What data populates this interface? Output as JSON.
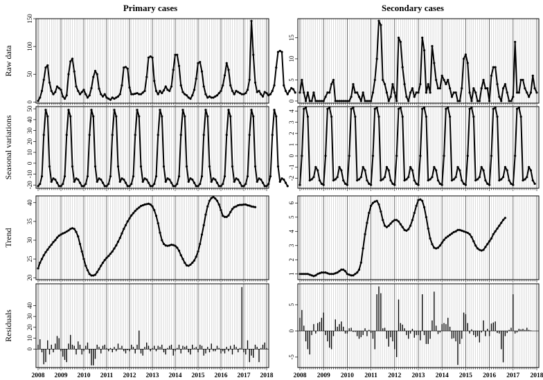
{
  "figure": {
    "columns": [
      "Primary cases",
      "Secondary cases"
    ],
    "rows": [
      "Raw data",
      "Seasonal variations",
      "Trend",
      "Residuals"
    ],
    "years": [
      "2008",
      "2009",
      "2010",
      "2011",
      "2012",
      "2013",
      "2014",
      "2015",
      "2016",
      "2017",
      "2018"
    ]
  },
  "chart_data": [
    {
      "name": "primary-raw",
      "type": "line",
      "column": "Primary cases",
      "ylabel": "Raw data",
      "x_start": 2008,
      "x_step_months": 1,
      "ylim": [
        -2,
        150
      ],
      "yticks": [
        0,
        50,
        100,
        150
      ],
      "values": [
        2,
        8,
        20,
        40,
        62,
        66,
        35,
        20,
        14,
        18,
        28,
        25,
        22,
        10,
        6,
        12,
        50,
        73,
        78,
        55,
        28,
        20,
        14,
        18,
        22,
        14,
        8,
        12,
        25,
        45,
        56,
        50,
        24,
        14,
        10,
        14,
        8,
        6,
        4,
        8,
        6,
        8,
        10,
        14,
        30,
        62,
        63,
        60,
        26,
        14,
        14,
        15,
        16,
        14,
        14,
        17,
        20,
        45,
        80,
        82,
        80,
        38,
        20,
        14,
        20,
        16,
        21,
        28,
        22,
        20,
        28,
        58,
        85,
        85,
        65,
        30,
        18,
        14,
        12,
        8,
        6,
        12,
        22,
        42,
        70,
        72,
        55,
        28,
        14,
        8,
        10,
        8,
        8,
        10,
        12,
        16,
        20,
        30,
        48,
        70,
        58,
        30,
        20,
        14,
        20,
        18,
        16,
        14,
        14,
        16,
        22,
        40,
        146,
        85,
        35,
        18,
        20,
        14,
        10,
        18,
        16,
        12,
        14,
        20,
        30,
        62,
        90,
        92,
        90,
        30,
        20,
        14,
        20,
        25,
        23,
        17
      ]
    },
    {
      "name": "primary-seasonal",
      "type": "line",
      "column": "Primary cases",
      "ylabel": "Seasonal variations",
      "x_start": 2008,
      "x_step_months": 1,
      "ylim": [
        -23,
        52
      ],
      "yticks": [
        -20,
        -10,
        0,
        10,
        20,
        30,
        40,
        50
      ],
      "values": [
        -21,
        -19,
        -12,
        26,
        49,
        43,
        -3,
        -17,
        -14,
        -15,
        -18,
        -21,
        -21,
        -19,
        -12,
        26,
        49,
        43,
        -3,
        -17,
        -14,
        -15,
        -18,
        -21,
        -21,
        -19,
        -12,
        26,
        49,
        43,
        -3,
        -17,
        -14,
        -15,
        -18,
        -21,
        -21,
        -19,
        -12,
        26,
        49,
        43,
        -3,
        -17,
        -14,
        -15,
        -18,
        -21,
        -21,
        -19,
        -12,
        26,
        49,
        43,
        -3,
        -17,
        -14,
        -15,
        -18,
        -21,
        -21,
        -19,
        -12,
        26,
        49,
        43,
        -3,
        -17,
        -14,
        -15,
        -18,
        -21,
        -21,
        -19,
        -12,
        26,
        49,
        43,
        -3,
        -17,
        -14,
        -15,
        -18,
        -21,
        -21,
        -19,
        -12,
        26,
        49,
        43,
        -3,
        -17,
        -14,
        -15,
        -18,
        -21,
        -21,
        -19,
        -12,
        26,
        49,
        43,
        -3,
        -17,
        -14,
        -15,
        -18,
        -21,
        -21,
        -19,
        -12,
        26,
        49,
        43,
        -3,
        -17,
        -14,
        -15,
        -18,
        -21,
        -21,
        -19,
        -12,
        26,
        49,
        43,
        -3,
        -17,
        -14,
        -15,
        -18,
        -21
      ]
    },
    {
      "name": "primary-trend",
      "type": "line",
      "column": "Primary cases",
      "ylabel": "Trend",
      "x_start": 2008,
      "x_step_months": 1,
      "ylim": [
        19.5,
        41.8
      ],
      "yticks": [
        20,
        25,
        30,
        35,
        40
      ],
      "values": [
        22.5,
        24,
        25,
        26,
        26.8,
        27.5,
        28.2,
        28.8,
        29.5,
        30,
        30.7,
        31.2,
        31.5,
        31.8,
        32,
        32.3,
        32.6,
        33,
        33.2,
        33,
        32.2,
        31,
        29,
        27,
        25,
        23.2,
        22,
        21,
        20.6,
        20.6,
        20.8,
        21.5,
        22.3,
        23.2,
        24,
        24.7,
        25.3,
        25.8,
        26.4,
        27,
        27.8,
        28.6,
        29.6,
        30.6,
        31.8,
        33,
        34,
        35,
        35.8,
        36.6,
        37.2,
        37.8,
        38.3,
        38.7,
        39.1,
        39.3,
        39.5,
        39.6,
        39.7,
        39.5,
        39,
        38,
        36.5,
        34.5,
        32,
        30,
        29,
        28.6,
        28.5,
        28.6,
        28.8,
        28.7,
        28.5,
        28,
        27.2,
        26,
        25,
        24,
        23.3,
        23.2,
        23.5,
        24,
        24.6,
        25.6,
        27,
        29,
        31.5,
        34,
        36.8,
        39,
        40.5,
        41.2,
        41.5,
        41.1,
        40.5,
        39.5,
        38,
        36.5,
        36.2,
        36.2,
        36.6,
        37.5,
        38.3,
        38.8,
        39,
        39.3,
        39.4,
        39.4,
        39.5,
        39.5,
        39.3,
        39.2,
        39,
        38.9,
        38.8
      ]
    },
    {
      "name": "primary-residuals",
      "type": "bar",
      "column": "Primary cases",
      "ylabel": "Residuals",
      "x_start": 2008,
      "x_step_months": 1,
      "ylim": [
        -17,
        60
      ],
      "yticks": [
        0,
        10,
        20,
        30,
        40
      ],
      "values": [
        4,
        9,
        -3,
        -14,
        -12,
        8,
        -5,
        4,
        -3,
        5,
        12,
        10,
        -2,
        -7,
        -10,
        -12,
        5,
        13,
        4,
        3,
        -5,
        7,
        4,
        -5,
        -2,
        3,
        6,
        -4,
        -15,
        -15,
        -9,
        4,
        2,
        -4,
        3,
        4,
        1,
        -2,
        1,
        -3,
        2,
        -2,
        5,
        1,
        3,
        -2,
        -4,
        -1,
        -2,
        4,
        2,
        -4,
        4,
        17,
        -4,
        -6,
        2,
        6,
        3,
        -2,
        1,
        3,
        -2,
        3,
        2,
        4,
        -3,
        -5,
        1,
        3,
        4,
        -6,
        -2,
        1,
        4,
        -4,
        3,
        2,
        3,
        -3,
        -5,
        4,
        1,
        2,
        -3,
        4,
        3,
        -6,
        -4,
        2,
        -3,
        5,
        -2,
        -2,
        3,
        1,
        -4,
        -2,
        -4,
        2,
        -2,
        3,
        -5,
        4,
        2,
        -3,
        1,
        57,
        -3,
        -5,
        8,
        -12,
        -6,
        -8,
        4,
        2,
        -12,
        1,
        4,
        6,
        1,
        23,
        18,
        -4,
        3,
        -2,
        5,
        -6,
        4,
        1
      ]
    },
    {
      "name": "secondary-raw",
      "type": "line",
      "column": "Secondary cases",
      "ylabel": "Raw data",
      "x_start": 2008,
      "x_step_months": 1,
      "ylim": [
        -0.5,
        19.5
      ],
      "yticks": [
        0,
        5,
        10,
        15
      ],
      "values": [
        2,
        5,
        2,
        0,
        2,
        0,
        0,
        2,
        0,
        0,
        0,
        0,
        0,
        1,
        2,
        2,
        4,
        5,
        0,
        0,
        0,
        0,
        0,
        0,
        0,
        0,
        1,
        4,
        2,
        2,
        1,
        0,
        2,
        0,
        0,
        0,
        0,
        2,
        5,
        10,
        19,
        18,
        5,
        4,
        2,
        0,
        1,
        4,
        2,
        0,
        15,
        14,
        8,
        4,
        1,
        0,
        2,
        3,
        1,
        2,
        2,
        4,
        15,
        12,
        2,
        4,
        2,
        13,
        9,
        5,
        3,
        3,
        6,
        5,
        4,
        5,
        3,
        1,
        2,
        2,
        0,
        0,
        3,
        10,
        11,
        9,
        2,
        0,
        3,
        2,
        0,
        0,
        3,
        5,
        3,
        3,
        0,
        6,
        8,
        8,
        4,
        1,
        0,
        3,
        4,
        2,
        0,
        0,
        1,
        14,
        2,
        2,
        5,
        5,
        3,
        2,
        1,
        2,
        6,
        3,
        2
      ]
    },
    {
      "name": "secondary-seasonal",
      "type": "line",
      "column": "Secondary cases",
      "ylabel": "Seasonal variations",
      "x_start": 2008,
      "x_step_months": 1,
      "ylim": [
        -2.9,
        4.4
      ],
      "yticks": [
        -2,
        -1,
        0,
        1,
        2,
        3,
        4
      ],
      "values": [
        -2.6,
        0,
        4.2,
        4.3,
        3.5,
        -2.2,
        -2.1,
        -1.9,
        -1,
        -1.3,
        -2.2,
        -2.5,
        -2.6,
        0,
        4.2,
        4.3,
        3.5,
        -2.2,
        -2.1,
        -1.9,
        -1,
        -1.3,
        -2.2,
        -2.5,
        -2.6,
        0,
        4.2,
        4.3,
        3.5,
        -2.2,
        -2.1,
        -1.9,
        -1,
        -1.3,
        -2.2,
        -2.5,
        -2.6,
        0,
        4.2,
        4.3,
        3.5,
        -2.2,
        -2.1,
        -1.9,
        -1,
        -1.3,
        -2.2,
        -2.5,
        -2.6,
        0,
        4.2,
        4.3,
        3.5,
        -2.2,
        -2.1,
        -1.9,
        -1,
        -1.3,
        -2.2,
        -2.5,
        -2.6,
        0,
        4.2,
        4.3,
        3.5,
        -2.2,
        -2.1,
        -1.9,
        -1,
        -1.3,
        -2.2,
        -2.5,
        -2.6,
        0,
        4.2,
        4.3,
        3.5,
        -2.2,
        -2.1,
        -1.9,
        -1,
        -1.3,
        -2.2,
        -2.5,
        -2.6,
        0,
        4.2,
        4.3,
        3.5,
        -2.2,
        -2.1,
        -1.9,
        -1,
        -1.3,
        -2.2,
        -2.5,
        -2.6,
        0,
        4.2,
        4.3,
        3.5,
        -2.2,
        -2.1,
        -1.9,
        -1,
        -1.3,
        -2.2,
        -2.5,
        -2.6,
        0,
        4.2,
        4.3,
        3.5,
        -2.2,
        -2.1,
        -1.9,
        -1,
        -1.3,
        -2.2,
        -2.5
      ]
    },
    {
      "name": "secondary-trend",
      "type": "line",
      "column": "Secondary cases",
      "ylabel": "Trend",
      "x_start": 2008,
      "x_step_months": 1,
      "ylim": [
        0.6,
        6.5
      ],
      "yticks": [
        1,
        2,
        3,
        4,
        5,
        6
      ],
      "values": [
        1,
        1,
        1,
        1,
        1,
        0.95,
        0.9,
        0.85,
        0.9,
        1,
        1.05,
        1.1,
        1.1,
        1.1,
        1.05,
        1,
        1,
        1,
        1.05,
        1.1,
        1.2,
        1.3,
        1.3,
        1.2,
        1,
        0.95,
        0.9,
        0.9,
        1,
        1.1,
        1.3,
        1.8,
        2.8,
        3.8,
        4.6,
        5.3,
        5.8,
        6,
        6.1,
        6.15,
        5.9,
        5.4,
        4.8,
        4.4,
        4.3,
        4.4,
        4.55,
        4.7,
        4.8,
        4.8,
        4.7,
        4.5,
        4.3,
        4.1,
        4.05,
        4.15,
        4.4,
        4.8,
        5.3,
        5.8,
        6.2,
        6.25,
        6.15,
        5.7,
        5,
        4.2,
        3.5,
        3.1,
        2.85,
        2.8,
        2.85,
        3,
        3.2,
        3.4,
        3.55,
        3.65,
        3.75,
        3.85,
        3.95,
        4,
        4.1,
        4.1,
        4.05,
        4,
        3.95,
        3.9,
        3.8,
        3.6,
        3.3,
        3,
        2.8,
        2.7,
        2.65,
        2.7,
        2.9,
        3.1,
        3.3,
        3.5,
        3.8,
        4,
        4.2,
        4.4,
        4.6,
        4.8,
        4.95
      ]
    },
    {
      "name": "secondary-residuals",
      "type": "bar",
      "column": "Secondary cases",
      "ylabel": "Residuals",
      "x_start": 2008,
      "x_step_months": 1,
      "ylim": [
        -7,
        9
      ],
      "yticks": [
        -5,
        0,
        5
      ],
      "values": [
        2.5,
        4,
        1,
        -2,
        -3.5,
        -4.5,
        -0.8,
        1.3,
        -0.5,
        1.5,
        1.7,
        2.5,
        3.5,
        -0.8,
        -2,
        -3.2,
        -3.5,
        -1,
        2.2,
        0.8,
        1.3,
        1.8,
        0.8,
        -0.5,
        -0.5,
        0.5,
        0.6,
        -0.2,
        -0.2,
        -1,
        -1.5,
        -1.2,
        -0.8,
        0.5,
        -1,
        0.2,
        -0.4,
        -1.5,
        -3.5,
        7,
        8.5,
        7.2,
        0.5,
        0.6,
        -1.5,
        -3,
        -1.2,
        -2,
        -3.5,
        -5,
        6,
        1.5,
        1.2,
        0.5,
        -0.8,
        -1.5,
        -0.5,
        0.4,
        -1.3,
        -0.8,
        -0.8,
        -1.8,
        7,
        -0.8,
        -2.5,
        -2.5,
        -1.5,
        2,
        7.5,
        1,
        -0.6,
        -0.3,
        1.3,
        1.5,
        1.3,
        2.5,
        0.8,
        -1.5,
        -1.4,
        -2,
        -6.5,
        -2.5,
        -1.5,
        3.5,
        3.2,
        1.5,
        -0.5,
        0.3,
        -0.8,
        -1.2,
        -1,
        -2.2,
        -0.3,
        2,
        -1,
        0.4,
        -1,
        1.4,
        1.6,
        1.8,
        -0.4,
        -0.5,
        -3.5,
        -6,
        -1,
        -0.4,
        0.2,
        0.6,
        7,
        -0.5,
        -0.3,
        0.4,
        0.3,
        0.4,
        0.2,
        0.6,
        0.2,
        0.1
      ]
    }
  ]
}
